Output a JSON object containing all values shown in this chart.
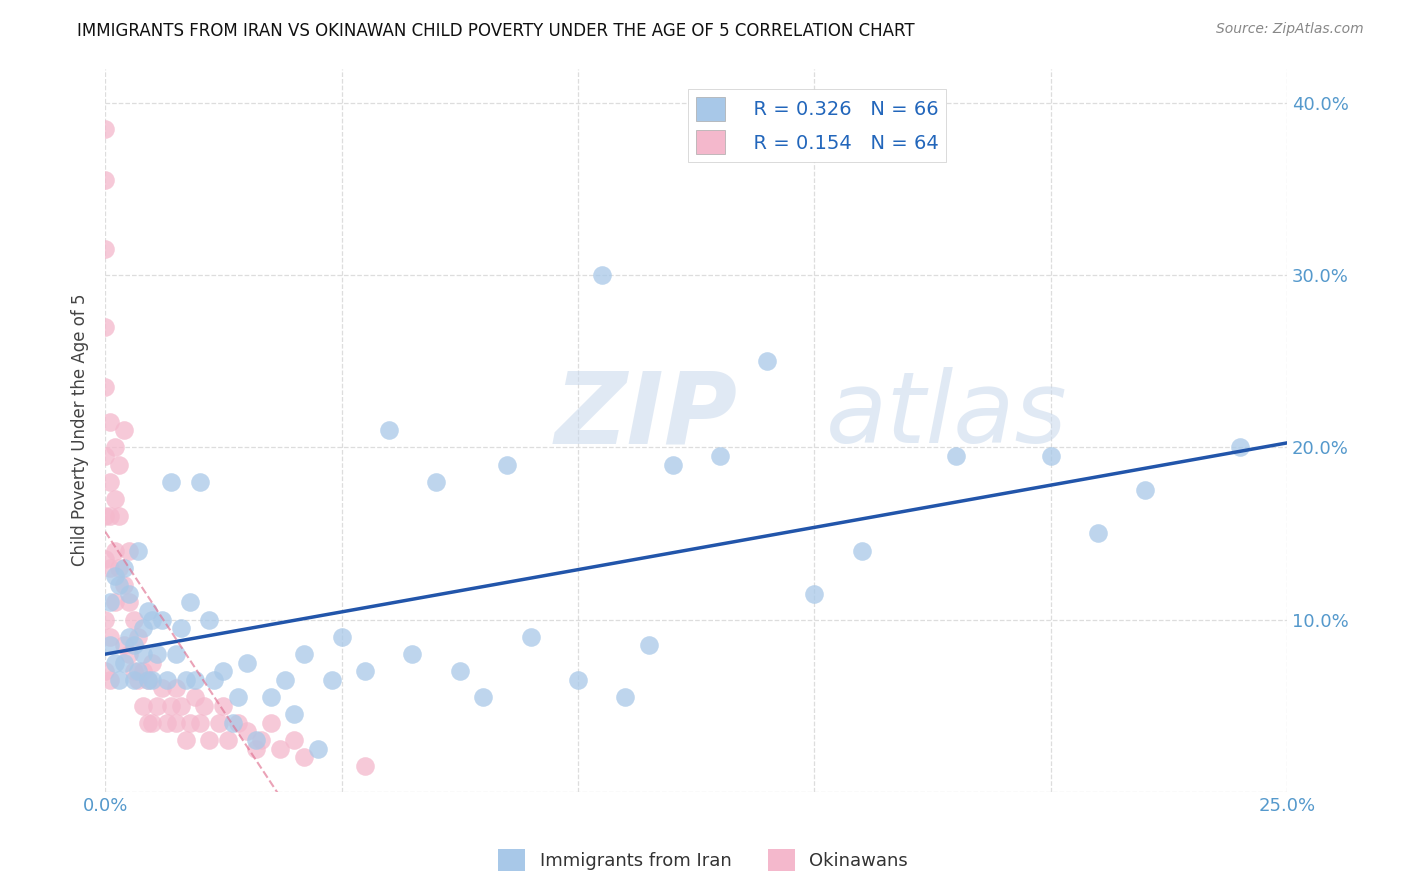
{
  "title": "IMMIGRANTS FROM IRAN VS OKINAWAN CHILD POVERTY UNDER THE AGE OF 5 CORRELATION CHART",
  "source": "Source: ZipAtlas.com",
  "ylabel": "Child Poverty Under the Age of 5",
  "xlim": [
    0.0,
    0.25
  ],
  "ylim": [
    0.0,
    0.42
  ],
  "legend1_label": "Immigrants from Iran",
  "legend2_label": "Okinawans",
  "R_iran": 0.326,
  "N_iran": 66,
  "R_okinawa": 0.154,
  "N_okinawa": 64,
  "blue_color": "#a8c8e8",
  "pink_color": "#f4b8cc",
  "line_blue": "#2255aa",
  "line_pink": "#e07090",
  "watermark_zip": "ZIP",
  "watermark_atlas": "atlas",
  "iran_x": [
    0.001,
    0.001,
    0.002,
    0.002,
    0.003,
    0.003,
    0.004,
    0.004,
    0.005,
    0.005,
    0.006,
    0.006,
    0.007,
    0.007,
    0.008,
    0.008,
    0.009,
    0.009,
    0.01,
    0.01,
    0.011,
    0.012,
    0.013,
    0.014,
    0.015,
    0.016,
    0.017,
    0.018,
    0.019,
    0.02,
    0.022,
    0.023,
    0.025,
    0.027,
    0.028,
    0.03,
    0.032,
    0.035,
    0.038,
    0.04,
    0.042,
    0.045,
    0.048,
    0.05,
    0.055,
    0.06,
    0.065,
    0.07,
    0.075,
    0.08,
    0.085,
    0.09,
    0.1,
    0.105,
    0.11,
    0.115,
    0.12,
    0.13,
    0.14,
    0.15,
    0.16,
    0.18,
    0.2,
    0.21,
    0.22,
    0.24
  ],
  "iran_y": [
    0.11,
    0.085,
    0.125,
    0.075,
    0.12,
    0.065,
    0.13,
    0.075,
    0.115,
    0.09,
    0.085,
    0.065,
    0.14,
    0.07,
    0.095,
    0.08,
    0.065,
    0.105,
    0.065,
    0.1,
    0.08,
    0.1,
    0.065,
    0.18,
    0.08,
    0.095,
    0.065,
    0.11,
    0.065,
    0.18,
    0.1,
    0.065,
    0.07,
    0.04,
    0.055,
    0.075,
    0.03,
    0.055,
    0.065,
    0.045,
    0.08,
    0.025,
    0.065,
    0.09,
    0.07,
    0.21,
    0.08,
    0.18,
    0.07,
    0.055,
    0.19,
    0.09,
    0.065,
    0.3,
    0.055,
    0.085,
    0.19,
    0.195,
    0.25,
    0.115,
    0.14,
    0.195,
    0.195,
    0.15,
    0.175,
    0.2
  ],
  "okinawa_x": [
    0.0,
    0.0,
    0.0,
    0.0,
    0.0,
    0.0,
    0.0,
    0.0,
    0.0,
    0.0,
    0.001,
    0.001,
    0.001,
    0.001,
    0.001,
    0.001,
    0.002,
    0.002,
    0.002,
    0.002,
    0.003,
    0.003,
    0.003,
    0.004,
    0.004,
    0.004,
    0.005,
    0.005,
    0.005,
    0.006,
    0.006,
    0.007,
    0.007,
    0.008,
    0.008,
    0.009,
    0.009,
    0.01,
    0.01,
    0.011,
    0.012,
    0.013,
    0.014,
    0.015,
    0.015,
    0.016,
    0.017,
    0.018,
    0.019,
    0.02,
    0.021,
    0.022,
    0.024,
    0.025,
    0.026,
    0.028,
    0.03,
    0.032,
    0.033,
    0.035,
    0.037,
    0.04,
    0.042,
    0.055
  ],
  "okinawa_y": [
    0.385,
    0.355,
    0.315,
    0.27,
    0.235,
    0.195,
    0.16,
    0.135,
    0.1,
    0.07,
    0.215,
    0.18,
    0.16,
    0.13,
    0.09,
    0.065,
    0.2,
    0.17,
    0.14,
    0.11,
    0.19,
    0.16,
    0.13,
    0.21,
    0.12,
    0.085,
    0.14,
    0.11,
    0.08,
    0.1,
    0.07,
    0.09,
    0.065,
    0.07,
    0.05,
    0.065,
    0.04,
    0.075,
    0.04,
    0.05,
    0.06,
    0.04,
    0.05,
    0.06,
    0.04,
    0.05,
    0.03,
    0.04,
    0.055,
    0.04,
    0.05,
    0.03,
    0.04,
    0.05,
    0.03,
    0.04,
    0.035,
    0.025,
    0.03,
    0.04,
    0.025,
    0.03,
    0.02,
    0.015
  ],
  "x_tick_positions": [
    0.0,
    0.05,
    0.1,
    0.15,
    0.2,
    0.25
  ],
  "x_tick_labels": [
    "0.0%",
    "",
    "",
    "",
    "",
    "25.0%"
  ],
  "y_tick_positions": [
    0.0,
    0.1,
    0.2,
    0.3,
    0.4
  ],
  "y_tick_labels": [
    "",
    "10.0%",
    "20.0%",
    "30.0%",
    "40.0%"
  ],
  "grid_color": "#dddddd",
  "tick_color": "#5599cc"
}
